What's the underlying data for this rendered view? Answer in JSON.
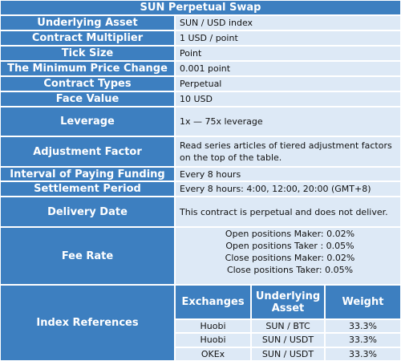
{
  "title": "SUN Perpetual Swap",
  "rows": [
    {
      "label": "Underlying Asset",
      "value": "SUN / USD index"
    },
    {
      "label": "Contract Multiplier",
      "value": "1 USD / point"
    },
    {
      "label": "Tick Size",
      "value": "Point"
    },
    {
      "label": "The Minimum Price Change",
      "value": "0.001 point"
    },
    {
      "label": "Contract Types",
      "value": "Perpetual"
    },
    {
      "label": "Face Value",
      "value": "10 USD"
    },
    {
      "label": "Leverage",
      "value": "1x — 75x leverage"
    },
    {
      "label": "Adjustment Factor",
      "value": "Read series articles of tiered adjustment factors on the top of the table."
    },
    {
      "label": "Interval of Paying Funding",
      "value": "Every 8 hours"
    },
    {
      "label": "Settlement Period",
      "value": "Every 8 hours: 4:00, 12:00, 20:00 (GMT+8)"
    },
    {
      "label": "Delivery Date",
      "value": "This contract is perpetual and does not deliver."
    },
    {
      "label": "Fee Rate",
      "lines": [
        "Open positions Maker: 0.02%",
        "Open positions Taker : 0.05%",
        "Close positions Maker: 0.02%",
        "Close positions Taker:  0.05%"
      ]
    }
  ],
  "index_references": {
    "label": "Index References",
    "headers": [
      "Exchanges",
      "Underlying Asset",
      "Weight"
    ],
    "rows": [
      [
        "Huobi",
        "SUN / BTC",
        "33.3%"
      ],
      [
        "Huobi",
        "SUN / USDT",
        "33.3%"
      ],
      [
        "OKEx",
        "SUN / USDT",
        "33.3%"
      ]
    ]
  }
}
